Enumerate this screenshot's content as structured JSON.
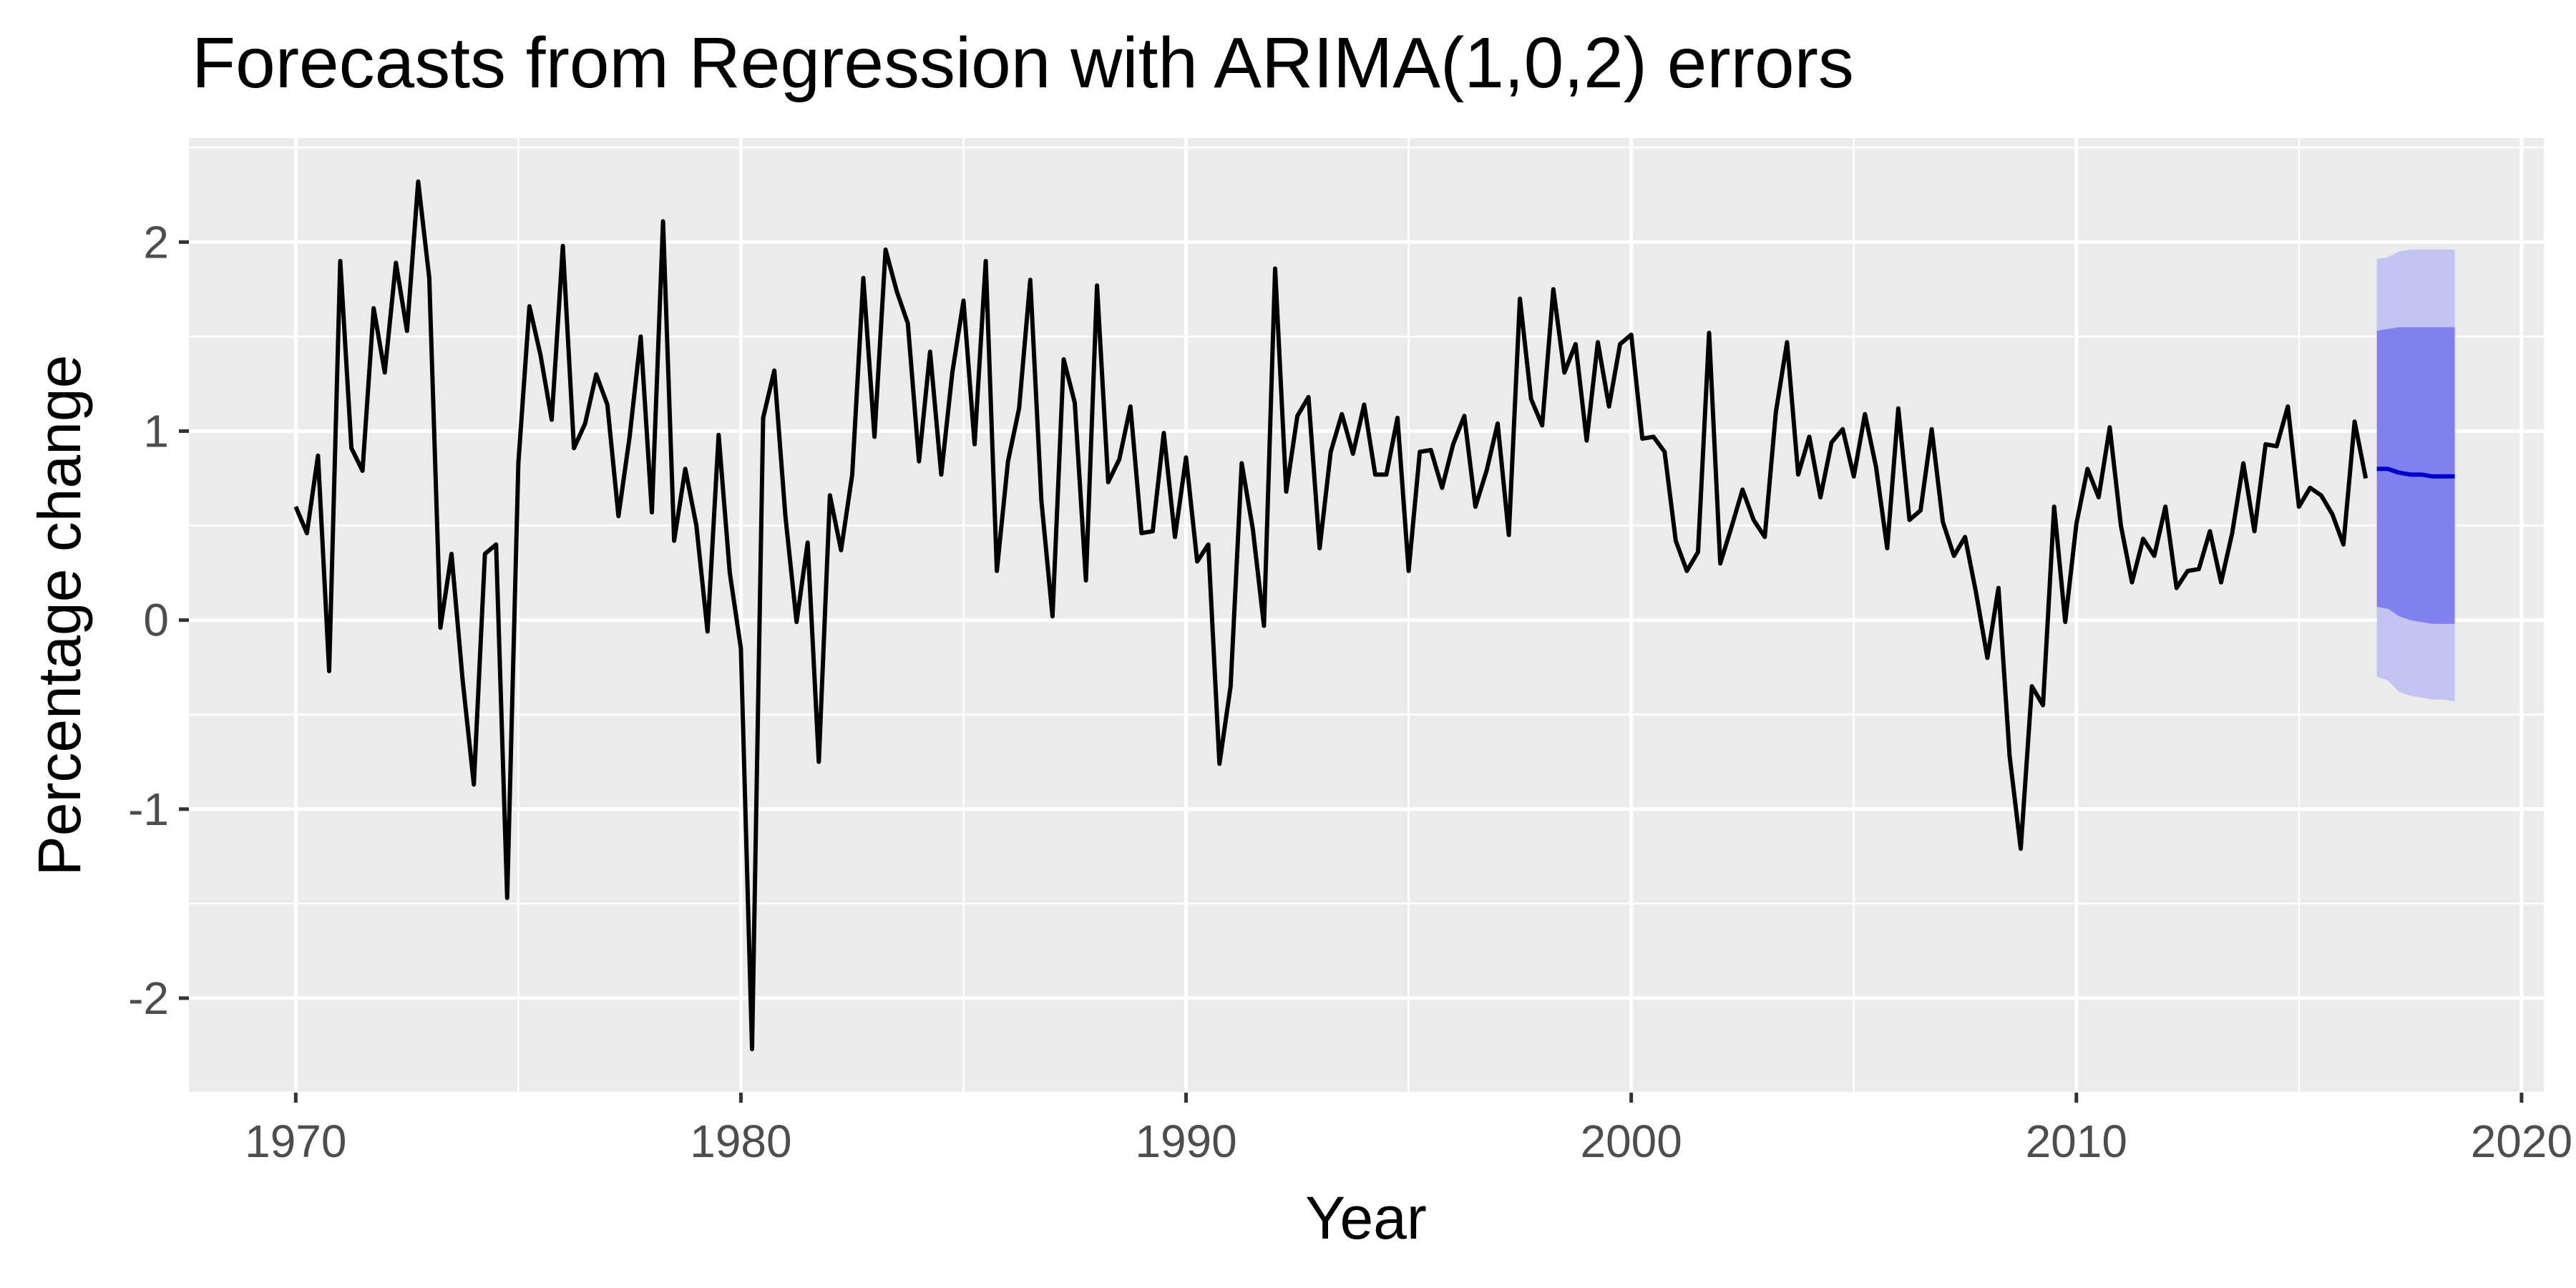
{
  "chart_data": {
    "type": "line",
    "title": "Forecasts from Regression with ARIMA(1,0,2) errors",
    "xlabel": "Year",
    "ylabel": "Percentage change",
    "xlim": [
      1967.6,
      2020.5
    ],
    "ylim": [
      -2.5,
      2.55
    ],
    "x_ticks": [
      1970,
      1980,
      1990,
      2000,
      2010,
      2020
    ],
    "x_tick_labels": [
      "1970",
      "1980",
      "1990",
      "2000",
      "2010",
      "2020"
    ],
    "y_ticks": [
      -2,
      -1,
      0,
      1,
      2
    ],
    "y_tick_labels": [
      "-2",
      "-1",
      "0",
      "1",
      "2"
    ],
    "grid": true,
    "colors": {
      "panel": "#ebebeb",
      "grid": "#ffffff",
      "history_line": "#000000",
      "forecast_line": "#0000cc",
      "band_80": "#8080ee",
      "band_95": "#c4c4f4"
    },
    "history": {
      "start": 1970.0,
      "step": 0.25,
      "values": [
        0.6,
        0.46,
        0.87,
        -0.27,
        1.9,
        0.91,
        0.79,
        1.65,
        1.31,
        1.89,
        1.53,
        2.32,
        1.81,
        -0.04,
        0.35,
        -0.32,
        -0.87,
        0.35,
        0.4,
        -1.47,
        0.83,
        1.66,
        1.4,
        1.06,
        1.98,
        0.91,
        1.04,
        1.3,
        1.14,
        0.55,
        0.97,
        1.5,
        0.57,
        2.11,
        0.42,
        0.8,
        0.5,
        -0.06,
        0.98,
        0.25,
        -0.15,
        -2.27,
        1.07,
        1.32,
        0.55,
        -0.01,
        0.41,
        -0.75,
        0.66,
        0.37,
        0.77,
        1.81,
        0.97,
        1.96,
        1.74,
        1.57,
        0.84,
        1.42,
        0.77,
        1.31,
        1.69,
        0.93,
        1.9,
        0.26,
        0.84,
        1.12,
        1.8,
        0.63,
        0.02,
        1.38,
        1.15,
        0.21,
        1.77,
        0.73,
        0.85,
        1.13,
        0.46,
        0.47,
        0.99,
        0.44,
        0.86,
        0.31,
        0.4,
        -0.76,
        -0.35,
        0.83,
        0.48,
        -0.03,
        1.86,
        0.68,
        1.08,
        1.18,
        0.38,
        0.89,
        1.09,
        0.88,
        1.14,
        0.77,
        0.77,
        1.07,
        0.26,
        0.89,
        0.9,
        0.7,
        0.93,
        1.08,
        0.6,
        0.79,
        1.04,
        0.45,
        1.7,
        1.17,
        1.03,
        1.75,
        1.31,
        1.46,
        0.95,
        1.47,
        1.13,
        1.46,
        1.51,
        0.96,
        0.97,
        0.89,
        0.42,
        0.26,
        0.36,
        1.52,
        0.3,
        0.49,
        0.69,
        0.53,
        0.44,
        1.1,
        1.47,
        0.77,
        0.97,
        0.65,
        0.94,
        1.01,
        0.76,
        1.09,
        0.81,
        0.38,
        1.12,
        0.53,
        0.58,
        1.01,
        0.52,
        0.34,
        0.44,
        0.14,
        -0.2,
        0.17,
        -0.72,
        -1.21,
        -0.35,
        -0.45,
        0.6,
        -0.01,
        0.51,
        0.8,
        0.65,
        1.02,
        0.5,
        0.2,
        0.43,
        0.34,
        0.6,
        0.17,
        0.26,
        0.27,
        0.47,
        0.2,
        0.46,
        0.83,
        0.47,
        0.93,
        0.92,
        1.13,
        0.6,
        0.7,
        0.66,
        0.56,
        0.4,
        1.05,
        0.75
      ]
    },
    "forecast": {
      "x": [
        2016.75,
        2017.0,
        2017.25,
        2017.5,
        2017.75,
        2018.0,
        2018.25,
        2018.5
      ],
      "mean": [
        0.8,
        0.8,
        0.78,
        0.77,
        0.77,
        0.76,
        0.76,
        0.76
      ],
      "lower_80": [
        0.07,
        0.06,
        0.02,
        0.0,
        -0.01,
        -0.02,
        -0.02,
        -0.02
      ],
      "upper_80": [
        1.53,
        1.54,
        1.55,
        1.55,
        1.55,
        1.55,
        1.55,
        1.55
      ],
      "lower_95": [
        -0.3,
        -0.32,
        -0.38,
        -0.4,
        -0.41,
        -0.42,
        -0.42,
        -0.43
      ],
      "upper_95": [
        1.91,
        1.92,
        1.95,
        1.96,
        1.96,
        1.96,
        1.96,
        1.96
      ]
    }
  }
}
